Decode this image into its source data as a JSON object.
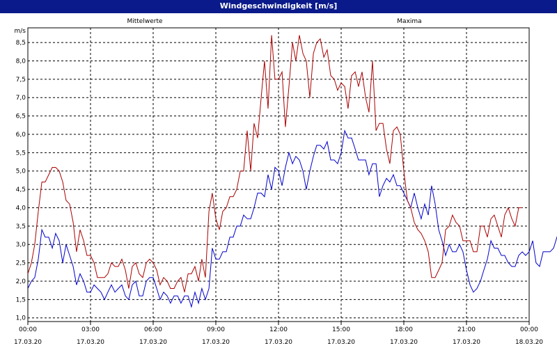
{
  "chart_data": {
    "type": "line",
    "title": "Windgeschwindigkeit [m/s]",
    "ylabel": "m/s",
    "ylim": [
      0.9,
      8.9
    ],
    "y_ticks": [
      "1,0",
      "1,5",
      "2,0",
      "2,5",
      "3,0",
      "3,5",
      "4,0",
      "4,5",
      "5,0",
      "5,5",
      "6,0",
      "6,5",
      "7,0",
      "7,5",
      "8,0",
      "8,5"
    ],
    "x_ticks": [
      {
        "time": "00:00",
        "date": "17.03.20"
      },
      {
        "time": "03:00",
        "date": "17.03.20"
      },
      {
        "time": "06:00",
        "date": "17.03.20"
      },
      {
        "time": "09:00",
        "date": "17.03.20"
      },
      {
        "time": "12:00",
        "date": "17.03.20"
      },
      {
        "time": "15:00",
        "date": "17.03.20"
      },
      {
        "time": "18:00",
        "date": "17.03.20"
      },
      {
        "time": "21:00",
        "date": "17.03.20"
      },
      {
        "time": "00:00",
        "date": "18.03.20"
      }
    ],
    "grid": true,
    "series": [
      {
        "name": "Mittelwerte",
        "color": "#0000cc",
        "points": [
          [
            0,
            1.8
          ],
          [
            0.17,
            2
          ],
          [
            0.33,
            2.1
          ],
          [
            0.5,
            2.6
          ],
          [
            0.67,
            3.4
          ],
          [
            0.83,
            3.2
          ],
          [
            1,
            3.2
          ],
          [
            1.17,
            2.9
          ],
          [
            1.33,
            3.3
          ],
          [
            1.5,
            3.1
          ],
          [
            1.67,
            2.5
          ],
          [
            1.83,
            3
          ],
          [
            2,
            2.7
          ],
          [
            2.17,
            2.4
          ],
          [
            2.33,
            1.9
          ],
          [
            2.5,
            2.2
          ],
          [
            2.67,
            2
          ],
          [
            2.83,
            1.7
          ],
          [
            3,
            1.7
          ],
          [
            3.17,
            1.9
          ],
          [
            3.33,
            1.8
          ],
          [
            3.5,
            1.7
          ],
          [
            3.67,
            1.5
          ],
          [
            3.83,
            1.7
          ],
          [
            4,
            1.9
          ],
          [
            4.17,
            1.7
          ],
          [
            4.33,
            1.8
          ],
          [
            4.5,
            1.9
          ],
          [
            4.67,
            1.6
          ],
          [
            4.83,
            1.5
          ],
          [
            5,
            1.9
          ],
          [
            5.17,
            2
          ],
          [
            5.33,
            1.6
          ],
          [
            5.5,
            1.6
          ],
          [
            5.67,
            2
          ],
          [
            5.83,
            2.1
          ],
          [
            6,
            2.1
          ],
          [
            6.17,
            1.8
          ],
          [
            6.33,
            1.5
          ],
          [
            6.5,
            1.7
          ],
          [
            6.67,
            1.6
          ],
          [
            6.83,
            1.4
          ],
          [
            7,
            1.6
          ],
          [
            7.17,
            1.6
          ],
          [
            7.33,
            1.4
          ],
          [
            7.5,
            1.6
          ],
          [
            7.67,
            1.6
          ],
          [
            7.83,
            1.3
          ],
          [
            8,
            1.7
          ],
          [
            8.17,
            1.4
          ],
          [
            8.33,
            1.8
          ],
          [
            8.5,
            1.5
          ],
          [
            8.67,
            1.8
          ],
          [
            8.83,
            2.9
          ],
          [
            9,
            2.6
          ],
          [
            9.17,
            2.6
          ],
          [
            9.33,
            2.8
          ],
          [
            9.5,
            2.8
          ],
          [
            9.67,
            3.2
          ],
          [
            9.83,
            3.2
          ],
          [
            10,
            3.5
          ],
          [
            10.17,
            3.5
          ],
          [
            10.33,
            3.8
          ],
          [
            10.5,
            3.7
          ],
          [
            10.67,
            3.7
          ],
          [
            10.83,
            4
          ],
          [
            11,
            4.4
          ],
          [
            11.17,
            4.4
          ],
          [
            11.33,
            4.3
          ],
          [
            11.5,
            4.9
          ],
          [
            11.67,
            4.5
          ],
          [
            11.83,
            5.1
          ],
          [
            12,
            5
          ],
          [
            12.17,
            4.6
          ],
          [
            12.33,
            5.1
          ],
          [
            12.5,
            5.5
          ],
          [
            12.67,
            5.2
          ],
          [
            12.83,
            5.4
          ],
          [
            13,
            5.3
          ],
          [
            13.17,
            5
          ],
          [
            13.33,
            4.5
          ],
          [
            13.5,
            5
          ],
          [
            13.67,
            5.4
          ],
          [
            13.83,
            5.7
          ],
          [
            14,
            5.7
          ],
          [
            14.17,
            5.6
          ],
          [
            14.33,
            5.8
          ],
          [
            14.5,
            5.3
          ],
          [
            14.67,
            5.3
          ],
          [
            14.83,
            5.2
          ],
          [
            15,
            5.5
          ],
          [
            15.17,
            6.1
          ],
          [
            15.33,
            5.9
          ],
          [
            15.5,
            5.9
          ],
          [
            15.67,
            5.6
          ],
          [
            15.83,
            5.3
          ],
          [
            16,
            5.3
          ],
          [
            16.17,
            5.3
          ],
          [
            16.33,
            4.9
          ],
          [
            16.5,
            5.2
          ],
          [
            16.67,
            5.2
          ],
          [
            16.83,
            4.3
          ],
          [
            17,
            4.6
          ],
          [
            17.17,
            4.8
          ],
          [
            17.33,
            4.7
          ],
          [
            17.5,
            4.9
          ],
          [
            17.67,
            4.6
          ],
          [
            17.83,
            4.6
          ],
          [
            18,
            4.4
          ],
          [
            18.17,
            4.2
          ],
          [
            18.33,
            4
          ],
          [
            18.5,
            4.4
          ],
          [
            18.67,
            4
          ],
          [
            18.83,
            3.7
          ],
          [
            19,
            4.1
          ],
          [
            19.17,
            3.8
          ],
          [
            19.33,
            4.6
          ],
          [
            19.5,
            4.1
          ],
          [
            19.67,
            3.4
          ],
          [
            19.83,
            3.1
          ],
          [
            20,
            2.7
          ],
          [
            20.17,
            3
          ],
          [
            20.33,
            2.8
          ],
          [
            20.5,
            2.8
          ],
          [
            20.67,
            3
          ],
          [
            20.83,
            2.8
          ],
          [
            21,
            2.3
          ],
          [
            21.17,
            1.9
          ],
          [
            21.33,
            1.7
          ],
          [
            21.5,
            1.8
          ],
          [
            21.67,
            2
          ],
          [
            21.83,
            2.3
          ],
          [
            22,
            2.6
          ],
          [
            22.17,
            3.1
          ],
          [
            22.33,
            2.9
          ],
          [
            22.5,
            2.9
          ],
          [
            22.67,
            2.7
          ],
          [
            22.83,
            2.7
          ],
          [
            23,
            2.5
          ],
          [
            23.17,
            2.4
          ],
          [
            23.33,
            2.4
          ],
          [
            23.5,
            2.7
          ],
          [
            23.67,
            2.8
          ],
          [
            23.83,
            2.7
          ],
          [
            24,
            2.8
          ],
          [
            24.17,
            3.1
          ],
          [
            24.33,
            2.5
          ],
          [
            24.5,
            2.4
          ],
          [
            24.67,
            2.8
          ],
          [
            24.83,
            2.8
          ],
          [
            25,
            2.8
          ],
          [
            25.17,
            2.9
          ],
          [
            25.33,
            3.2
          ],
          [
            25.5,
            3
          ]
        ]
      },
      {
        "name": "Maxima",
        "color": "#aa0000",
        "points": [
          [
            0,
            2.2
          ],
          [
            0.17,
            2.5
          ],
          [
            0.33,
            3
          ],
          [
            0.5,
            3.9
          ],
          [
            0.67,
            4.7
          ],
          [
            0.83,
            4.7
          ],
          [
            1,
            4.9
          ],
          [
            1.17,
            5.1
          ],
          [
            1.33,
            5.1
          ],
          [
            1.5,
            5
          ],
          [
            1.67,
            4.7
          ],
          [
            1.83,
            4.2
          ],
          [
            2,
            4.1
          ],
          [
            2.17,
            3.6
          ],
          [
            2.33,
            2.8
          ],
          [
            2.5,
            3.4
          ],
          [
            2.67,
            3.1
          ],
          [
            2.83,
            2.7
          ],
          [
            3,
            2.7
          ],
          [
            3.17,
            2.5
          ],
          [
            3.33,
            2.1
          ],
          [
            3.5,
            2.1
          ],
          [
            3.67,
            2.1
          ],
          [
            3.83,
            2.2
          ],
          [
            4,
            2.5
          ],
          [
            4.17,
            2.4
          ],
          [
            4.33,
            2.4
          ],
          [
            4.5,
            2.6
          ],
          [
            4.67,
            2.3
          ],
          [
            4.83,
            1.8
          ],
          [
            5,
            2.4
          ],
          [
            5.17,
            2.5
          ],
          [
            5.33,
            2.2
          ],
          [
            5.5,
            2.1
          ],
          [
            5.67,
            2.5
          ],
          [
            5.83,
            2.6
          ],
          [
            6,
            2.5
          ],
          [
            6.17,
            2.3
          ],
          [
            6.33,
            1.9
          ],
          [
            6.5,
            2.1
          ],
          [
            6.67,
            2
          ],
          [
            6.83,
            1.8
          ],
          [
            7,
            1.8
          ],
          [
            7.17,
            2
          ],
          [
            7.33,
            2.1
          ],
          [
            7.5,
            1.7
          ],
          [
            7.67,
            2.2
          ],
          [
            7.83,
            2.2
          ],
          [
            8,
            2.4
          ],
          [
            8.17,
            2
          ],
          [
            8.33,
            2.6
          ],
          [
            8.5,
            2.1
          ],
          [
            8.67,
            3.9
          ],
          [
            8.83,
            4.4
          ],
          [
            9,
            3.7
          ],
          [
            9.17,
            3.4
          ],
          [
            9.33,
            3.9
          ],
          [
            9.5,
            4
          ],
          [
            9.67,
            4.3
          ],
          [
            9.83,
            4.3
          ],
          [
            10,
            4.5
          ],
          [
            10.17,
            5
          ],
          [
            10.33,
            5
          ],
          [
            10.5,
            6.1
          ],
          [
            10.67,
            5
          ],
          [
            10.83,
            6.3
          ],
          [
            11,
            5.9
          ],
          [
            11.17,
            7
          ],
          [
            11.33,
            8
          ],
          [
            11.5,
            6.7
          ],
          [
            11.67,
            8.7
          ],
          [
            11.83,
            7.5
          ],
          [
            12,
            7.5
          ],
          [
            12.17,
            7.7
          ],
          [
            12.33,
            6.2
          ],
          [
            12.5,
            7.3
          ],
          [
            12.67,
            8.5
          ],
          [
            12.83,
            8
          ],
          [
            13,
            8.7
          ],
          [
            13.17,
            8.2
          ],
          [
            13.33,
            8
          ],
          [
            13.5,
            7
          ],
          [
            13.67,
            8.2
          ],
          [
            13.83,
            8.5
          ],
          [
            14,
            8.6
          ],
          [
            14.17,
            8.1
          ],
          [
            14.33,
            8.3
          ],
          [
            14.5,
            7.6
          ],
          [
            14.67,
            7.5
          ],
          [
            14.83,
            7.2
          ],
          [
            15,
            7.4
          ],
          [
            15.17,
            7.3
          ],
          [
            15.33,
            6.7
          ],
          [
            15.5,
            7.6
          ],
          [
            15.67,
            7.7
          ],
          [
            15.83,
            7.3
          ],
          [
            16,
            7.7
          ],
          [
            16.17,
            7
          ],
          [
            16.33,
            6.6
          ],
          [
            16.5,
            8
          ],
          [
            16.67,
            6.1
          ],
          [
            16.83,
            6.3
          ],
          [
            17,
            6.3
          ],
          [
            17.17,
            5.6
          ],
          [
            17.33,
            5.2
          ],
          [
            17.5,
            6.1
          ],
          [
            17.67,
            6.2
          ],
          [
            17.83,
            6
          ],
          [
            18,
            5
          ],
          [
            18.17,
            4.2
          ],
          [
            18.33,
            4
          ],
          [
            18.5,
            3.6
          ],
          [
            18.67,
            3.4
          ],
          [
            18.83,
            3.3
          ],
          [
            19,
            3.1
          ],
          [
            19.17,
            2.8
          ],
          [
            19.33,
            2.1
          ],
          [
            19.5,
            2.1
          ],
          [
            19.67,
            2.3
          ],
          [
            19.83,
            2.5
          ],
          [
            20,
            3.4
          ],
          [
            20.17,
            3.5
          ],
          [
            20.33,
            3.8
          ],
          [
            20.5,
            3.6
          ],
          [
            20.67,
            3.5
          ],
          [
            20.83,
            3.1
          ],
          [
            21,
            3.1
          ],
          [
            21.17,
            3.1
          ],
          [
            21.33,
            2.8
          ],
          [
            21.5,
            2.8
          ],
          [
            21.67,
            3.5
          ],
          [
            21.83,
            3.5
          ],
          [
            22,
            3.2
          ],
          [
            22.17,
            3.7
          ],
          [
            22.33,
            3.8
          ],
          [
            22.5,
            3.5
          ],
          [
            22.67,
            3.2
          ],
          [
            22.83,
            3.8
          ],
          [
            23,
            4
          ],
          [
            23.17,
            3.7
          ],
          [
            23.33,
            3.5
          ],
          [
            23.5,
            4
          ],
          [
            23.67,
            4
          ]
        ]
      }
    ],
    "legend": "top"
  }
}
